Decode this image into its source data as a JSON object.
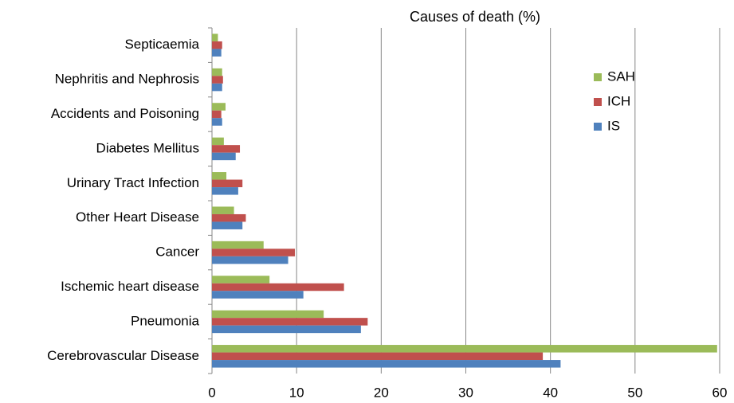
{
  "chart_data": {
    "type": "hbar",
    "title": "Causes of death (%)",
    "categories": [
      "Cerebrovascular Disease",
      "Pneumonia",
      "Ischemic heart disease",
      "Cancer",
      "Other Heart Disease",
      "Urinary Tract Infection",
      "Diabetes Mellitus",
      "Accidents and Poisoning",
      "Nephritis and Nephrosis",
      "Septicaemia"
    ],
    "series": [
      {
        "name": "SAH",
        "color": "#9bbb59",
        "values": [
          59.7,
          13.2,
          6.8,
          6.1,
          2.6,
          1.7,
          1.4,
          1.6,
          1.2,
          0.7
        ]
      },
      {
        "name": "ICH",
        "color": "#c0504d",
        "values": [
          39.1,
          18.4,
          15.6,
          9.8,
          4.0,
          3.6,
          3.3,
          1.1,
          1.3,
          1.2
        ]
      },
      {
        "name": "IS",
        "color": "#4f81bd",
        "values": [
          41.2,
          17.6,
          10.8,
          9.0,
          3.6,
          3.1,
          2.8,
          1.2,
          1.2,
          1.1
        ]
      }
    ],
    "xlim": [
      0,
      60
    ],
    "xticks": [
      0,
      10,
      20,
      30,
      40,
      50,
      60
    ],
    "grid": true
  }
}
